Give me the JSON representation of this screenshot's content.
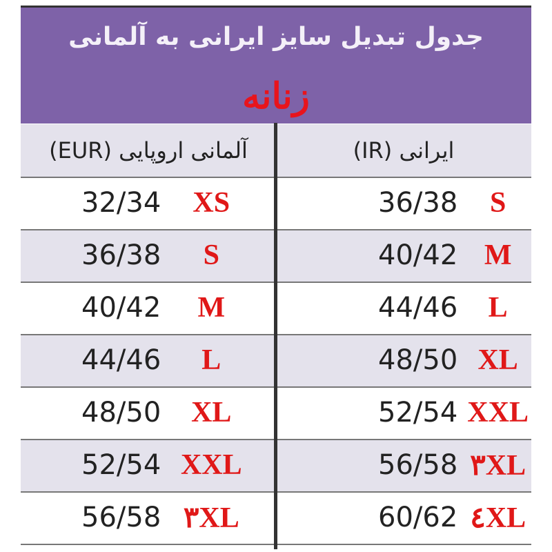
{
  "header": {
    "title": "جدول تبدیل سایز ایرانی به آلمانی",
    "subtitle": "زنانه"
  },
  "table": {
    "columns": [
      "آلمانی اروپایی (EUR)",
      "ایرانی (IR)"
    ],
    "rows": [
      {
        "eur": "32/34",
        "eur_size": "XS",
        "ir": "36/38",
        "ir_size": "S"
      },
      {
        "eur": "36/38",
        "eur_size": "S",
        "ir": "40/42",
        "ir_size": "M"
      },
      {
        "eur": "40/42",
        "eur_size": "M",
        "ir": "44/46",
        "ir_size": "L"
      },
      {
        "eur": "44/46",
        "eur_size": "L",
        "ir": "48/50",
        "ir_size": "XL"
      },
      {
        "eur": "48/50",
        "eur_size": "XL",
        "ir": "52/54",
        "ir_size": "XXL"
      },
      {
        "eur": "52/54",
        "eur_size": "XXL",
        "ir": "56/58",
        "ir_size": "۳XL"
      },
      {
        "eur": "56/58",
        "eur_size": "۳XL",
        "ir": "60/62",
        "ir_size": "٤XL"
      }
    ]
  }
}
